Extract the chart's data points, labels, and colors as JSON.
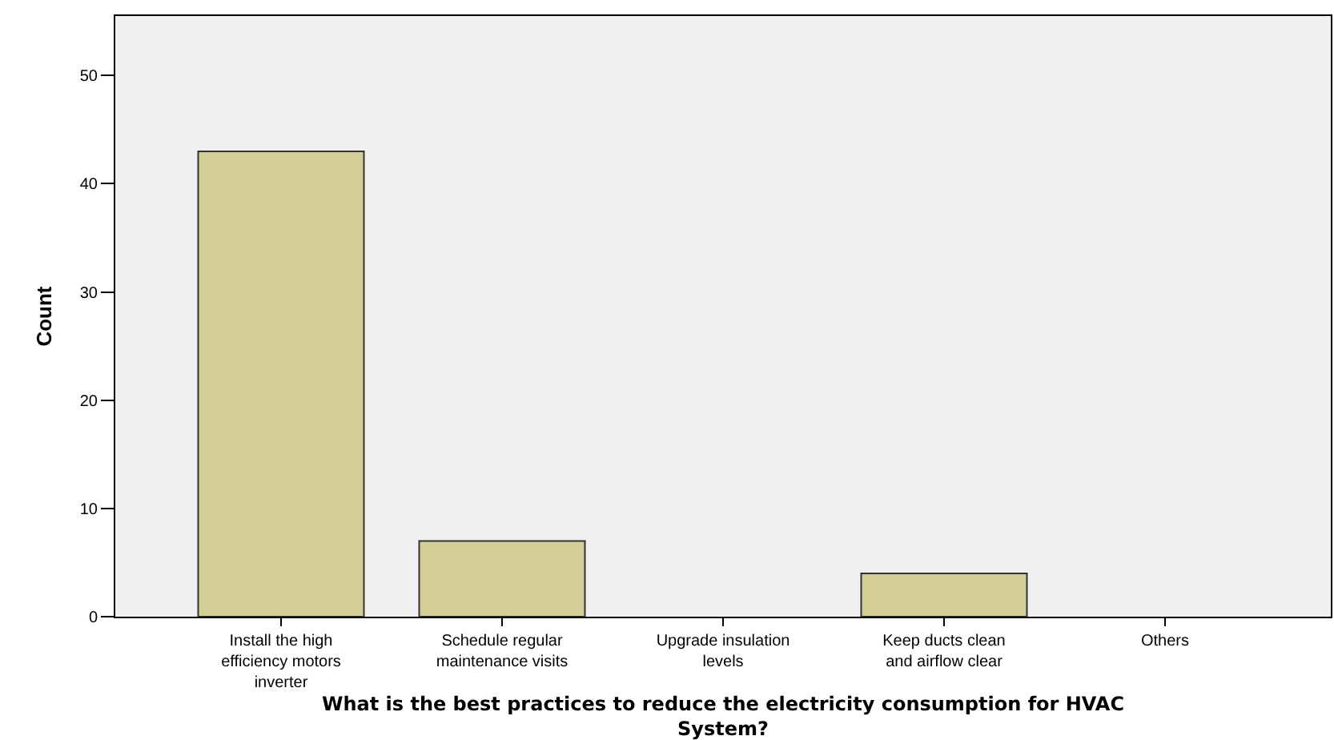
{
  "chart_data": {
    "type": "bar",
    "xlabel": "What is the best practices to reduce the electricity consumption for HVAC System?",
    "ylabel": "Count",
    "categories": [
      "Install the high efficiency motors inverter",
      "Schedule regular maintenance visits",
      "Upgrade insulation levels",
      "Keep ducts clean and airflow clear",
      "Others"
    ],
    "values": [
      43,
      7,
      0,
      4,
      0
    ],
    "color": "#d3ce97",
    "ylim": [
      0,
      55.5
    ],
    "yticks": [
      0,
      10,
      20,
      30,
      40,
      50
    ],
    "grid": false
  }
}
